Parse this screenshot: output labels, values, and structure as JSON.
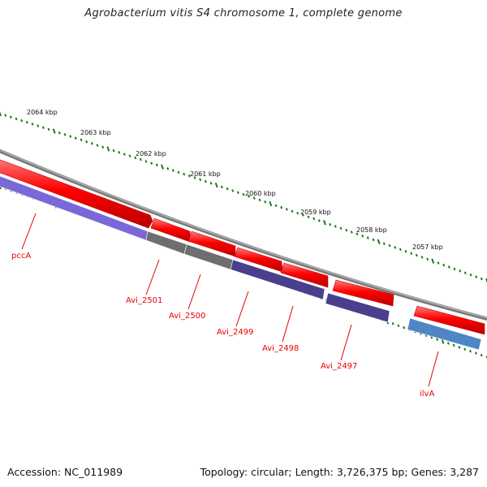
{
  "header": {
    "title": "Agrobacterium vitis S4 chromosome 1, complete genome"
  },
  "footer": {
    "accession": "Accession: NC_011989",
    "summary": "Topology: circular; Length: 3,726,375 bp; Genes: 3,287"
  },
  "scale": {
    "ticks": [
      "2064 kbp",
      "2063 kbp",
      "2062 kbp",
      "2061 kbp",
      "2060 kbp",
      "2059 kbp",
      "2058 kbp",
      "2057 kbp"
    ]
  },
  "genes": [
    {
      "label": "pccA",
      "strand": "reverse",
      "cds_color": "#7b68d8"
    },
    {
      "label": "Avi_2501",
      "strand": "reverse",
      "cds_color": "#6e6e6e"
    },
    {
      "label": "Avi_2500",
      "strand": "reverse",
      "cds_color": "#6e6e6e"
    },
    {
      "label": "Avi_2499",
      "strand": "reverse",
      "cds_color": "#4a3f8c"
    },
    {
      "label": "Avi_2498",
      "strand": "reverse",
      "cds_color": "#4a3f8c"
    },
    {
      "label": "Avi_2497",
      "strand": "reverse",
      "cds_color": "#4a3f8c"
    },
    {
      "label": "ilvA",
      "strand": "reverse",
      "cds_color": "#4f86c6"
    }
  ],
  "colors": {
    "gene_arrow": "#ff0000",
    "backbone": "#808080",
    "tick": "#1a7a1a",
    "label": "#e60000"
  }
}
